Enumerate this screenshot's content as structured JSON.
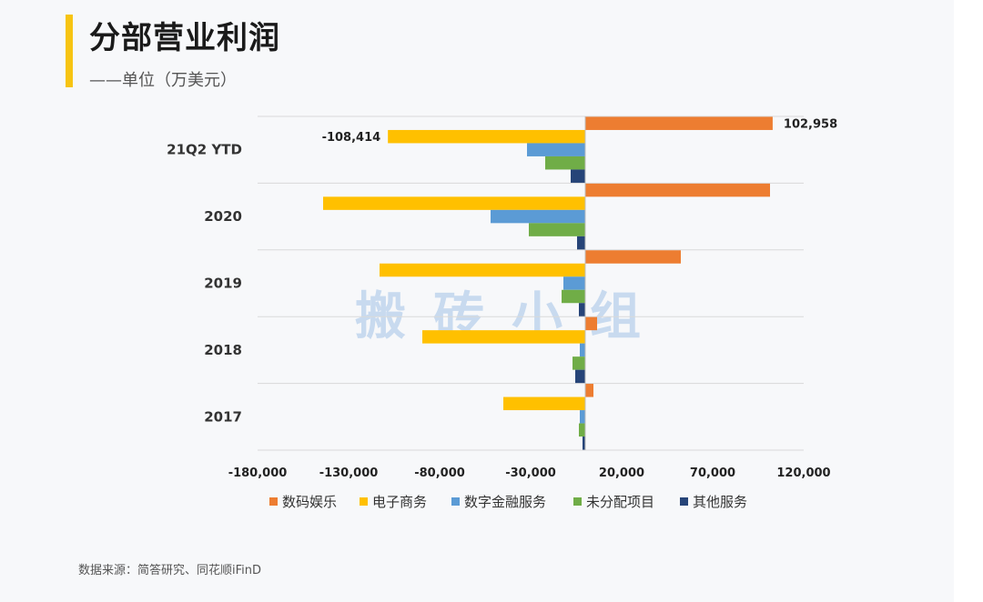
{
  "title": "分部营业利润",
  "subtitle": "——单位（万美元）",
  "source": "数据来源：简答研究、同花顺iFinD",
  "watermark": "搬砖小组",
  "chart_data": {
    "type": "bar",
    "orientation": "horizontal",
    "categories": [
      "21Q2 YTD",
      "2020",
      "2019",
      "2018",
      "2017"
    ],
    "series": [
      {
        "name": "数码娱乐",
        "color": "#ed7d31",
        "values": [
          102958,
          101500,
          52500,
          6500,
          4500
        ]
      },
      {
        "name": "电子商务",
        "color": "#ffc000",
        "values": [
          -108414,
          -144000,
          -113000,
          -89500,
          -45000
        ]
      },
      {
        "name": "数字金融服务",
        "color": "#5b9bd5",
        "values": [
          -32000,
          -52000,
          -12000,
          -3000,
          -3000
        ]
      },
      {
        "name": "未分配项目",
        "color": "#70ad47",
        "values": [
          -22000,
          -31000,
          -13000,
          -7000,
          -3500
        ]
      },
      {
        "name": "其他服务",
        "color": "#264478",
        "values": [
          -8000,
          -4500,
          -3500,
          -5500,
          -1500
        ]
      }
    ],
    "xlim": [
      -180000,
      120000
    ],
    "xticks": [
      -180000,
      -130000,
      -80000,
      -30000,
      20000,
      70000,
      120000
    ],
    "xtick_labels": [
      "-180,000",
      "-130,000",
      "-80,000",
      "-30,000",
      "20,000",
      "70,000",
      "120,000"
    ],
    "data_labels": [
      {
        "category": "21Q2 YTD",
        "series": "电子商务",
        "text": "-108,414"
      },
      {
        "category": "21Q2 YTD",
        "series": "数码娱乐",
        "text": "102,958"
      }
    ],
    "grid": true,
    "legend": "bottom"
  }
}
